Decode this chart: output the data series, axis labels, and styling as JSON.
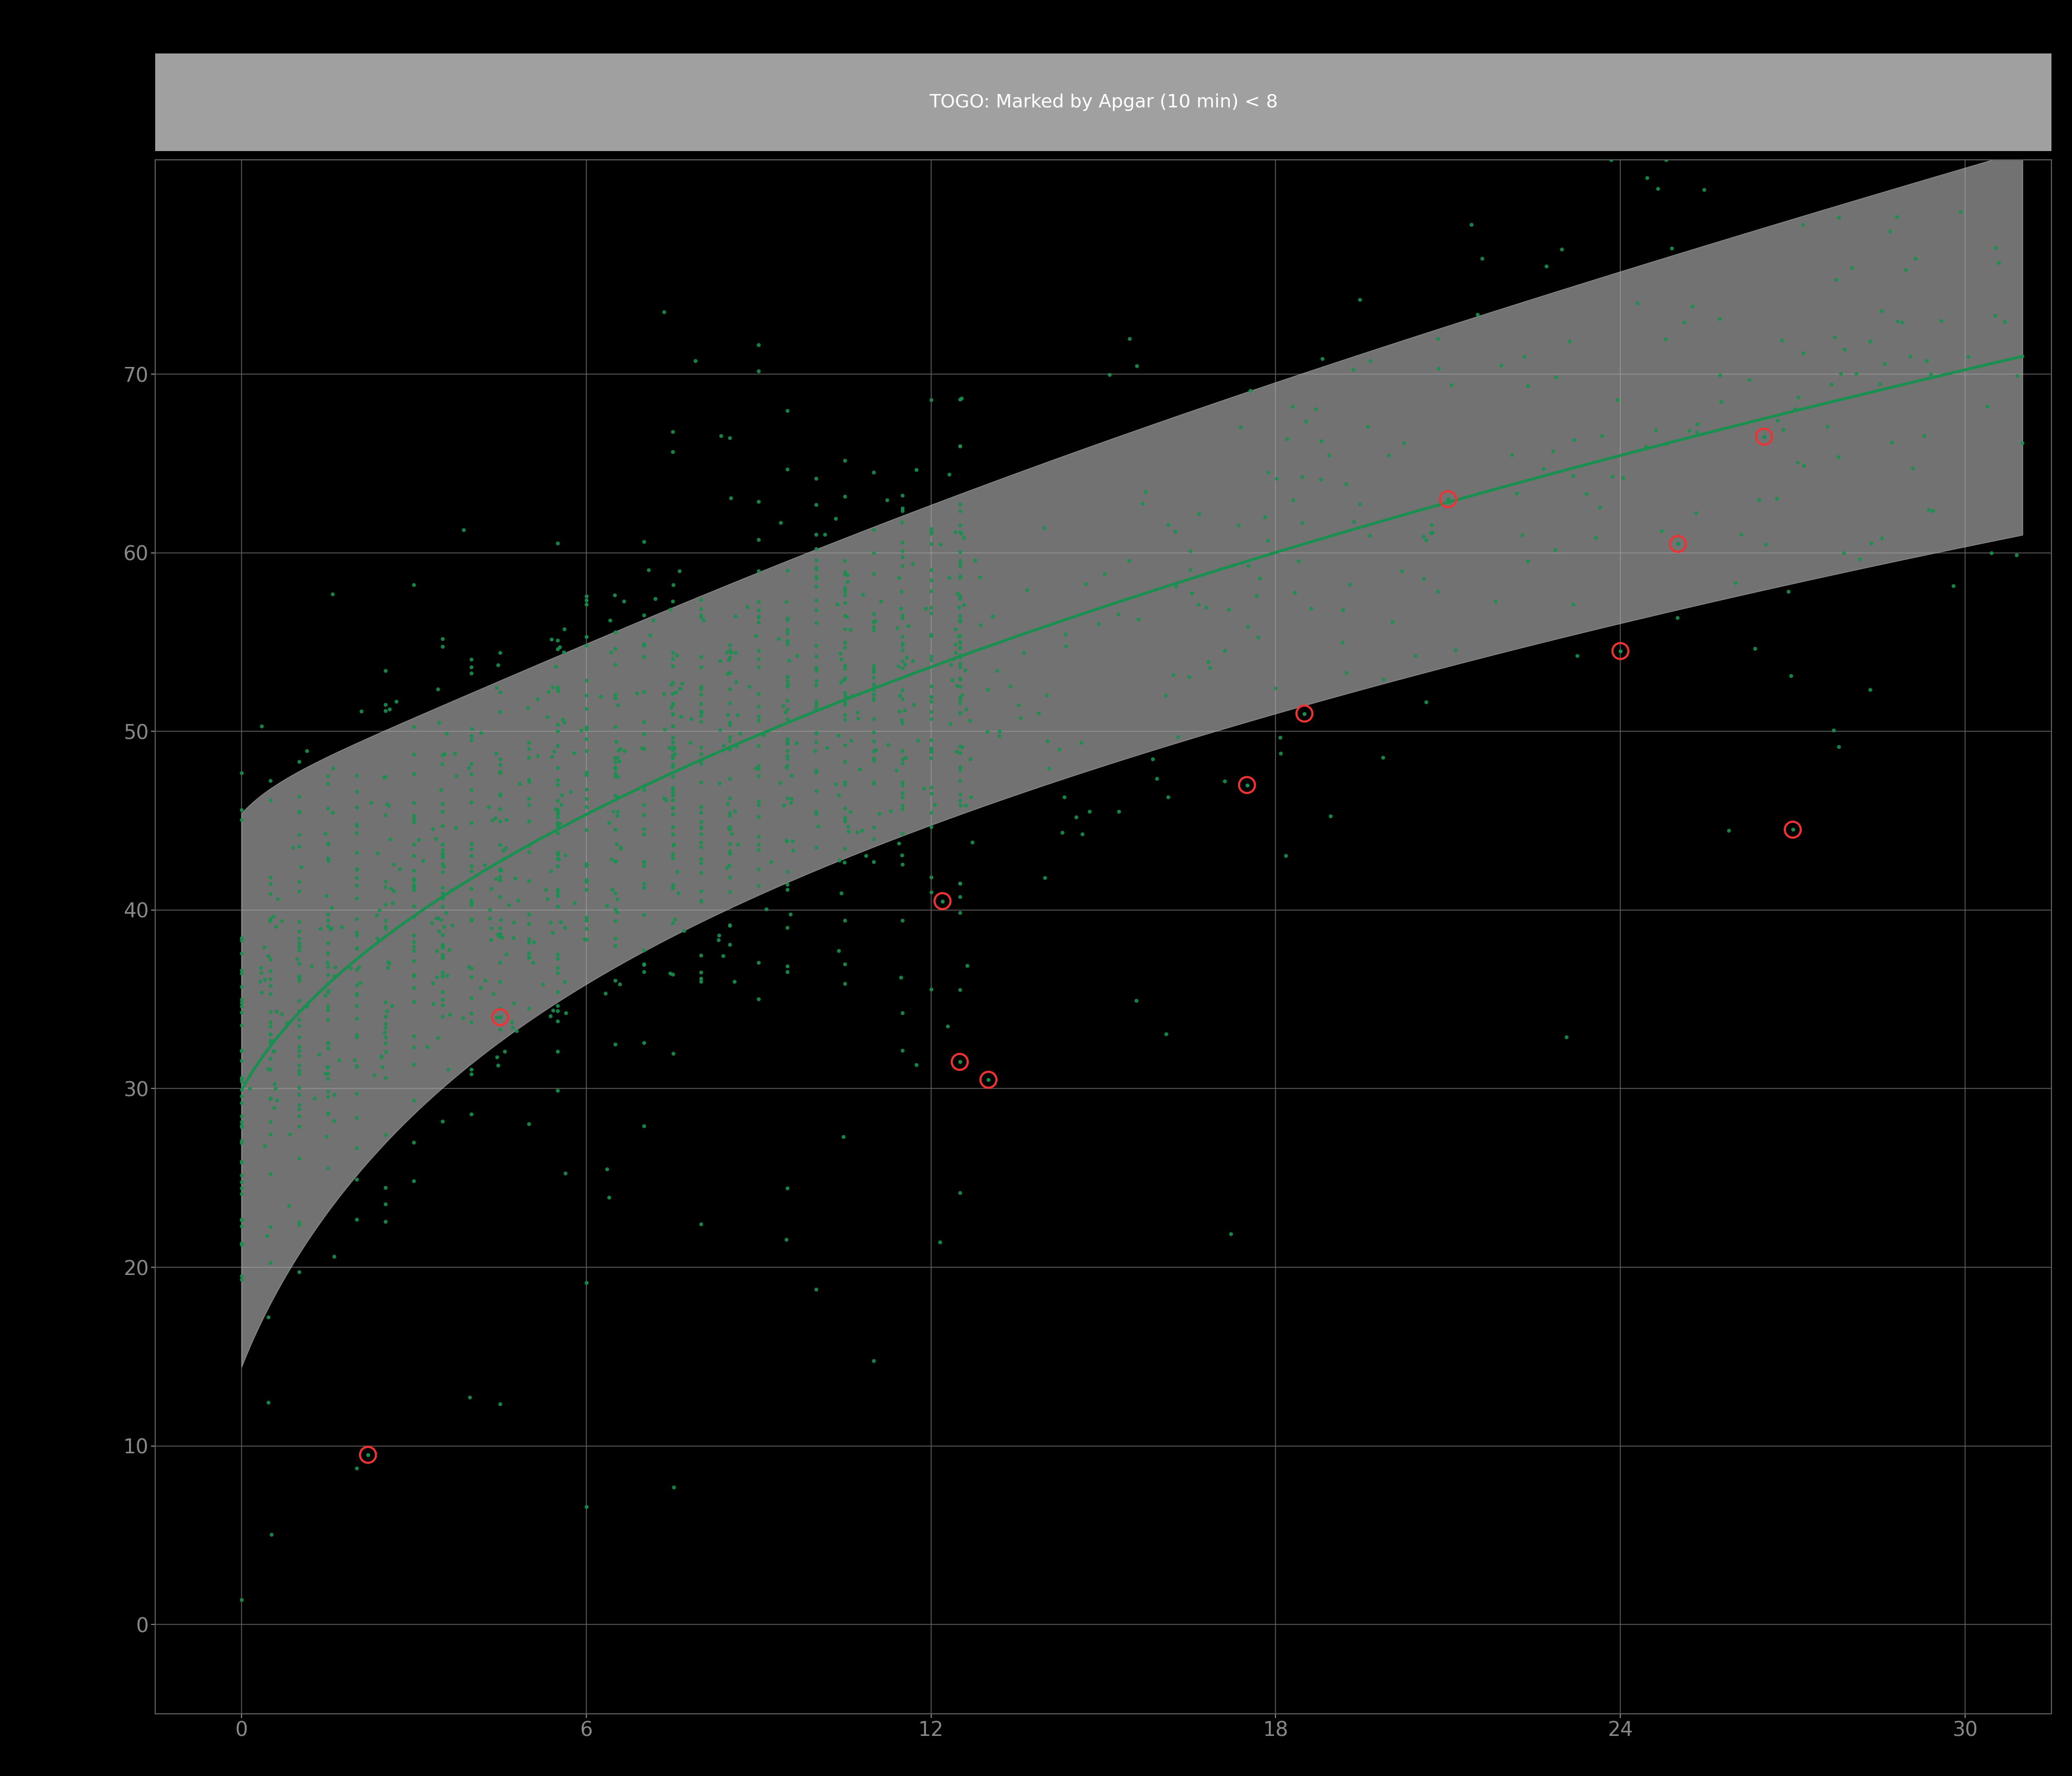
{
  "title": "TOGO: Marked by Apgar (10 min) < 8",
  "title_fontsize": 26,
  "bg_color": "#000000",
  "plot_bg_color": "#000000",
  "title_bg_color": "#a0a0a0",
  "grid_color": "#606060",
  "dot_color": "#1a9050",
  "dot_size": 30,
  "dot_alpha": 0.9,
  "circle_color": "#ee3333",
  "circle_size": 500,
  "circle_linewidth": 3.0,
  "smooth_color": "#1a9050",
  "smooth_linewidth": 4.0,
  "band_color": "#b0b0b0",
  "band_alpha": 0.65,
  "tick_color": "#888888",
  "tick_fontsize": 28,
  "xlim": [
    -1.5,
    31.5
  ],
  "ylim": [
    -5,
    82
  ],
  "xticks": [
    0,
    6,
    12,
    18,
    24,
    30
  ],
  "yticks": [
    0,
    10,
    20,
    30,
    40,
    50,
    60,
    70
  ],
  "seed": 42,
  "n_points": 1500,
  "circled_points": [
    [
      2.2,
      9.5
    ],
    [
      4.5,
      34.0
    ],
    [
      12.2,
      40.5
    ],
    [
      12.5,
      31.5
    ],
    [
      13.0,
      30.5
    ],
    [
      17.5,
      47.0
    ],
    [
      18.5,
      51.0
    ],
    [
      21.0,
      63.0
    ],
    [
      24.0,
      54.5
    ],
    [
      25.0,
      60.5
    ],
    [
      26.5,
      66.5
    ],
    [
      27.0,
      44.5
    ]
  ]
}
